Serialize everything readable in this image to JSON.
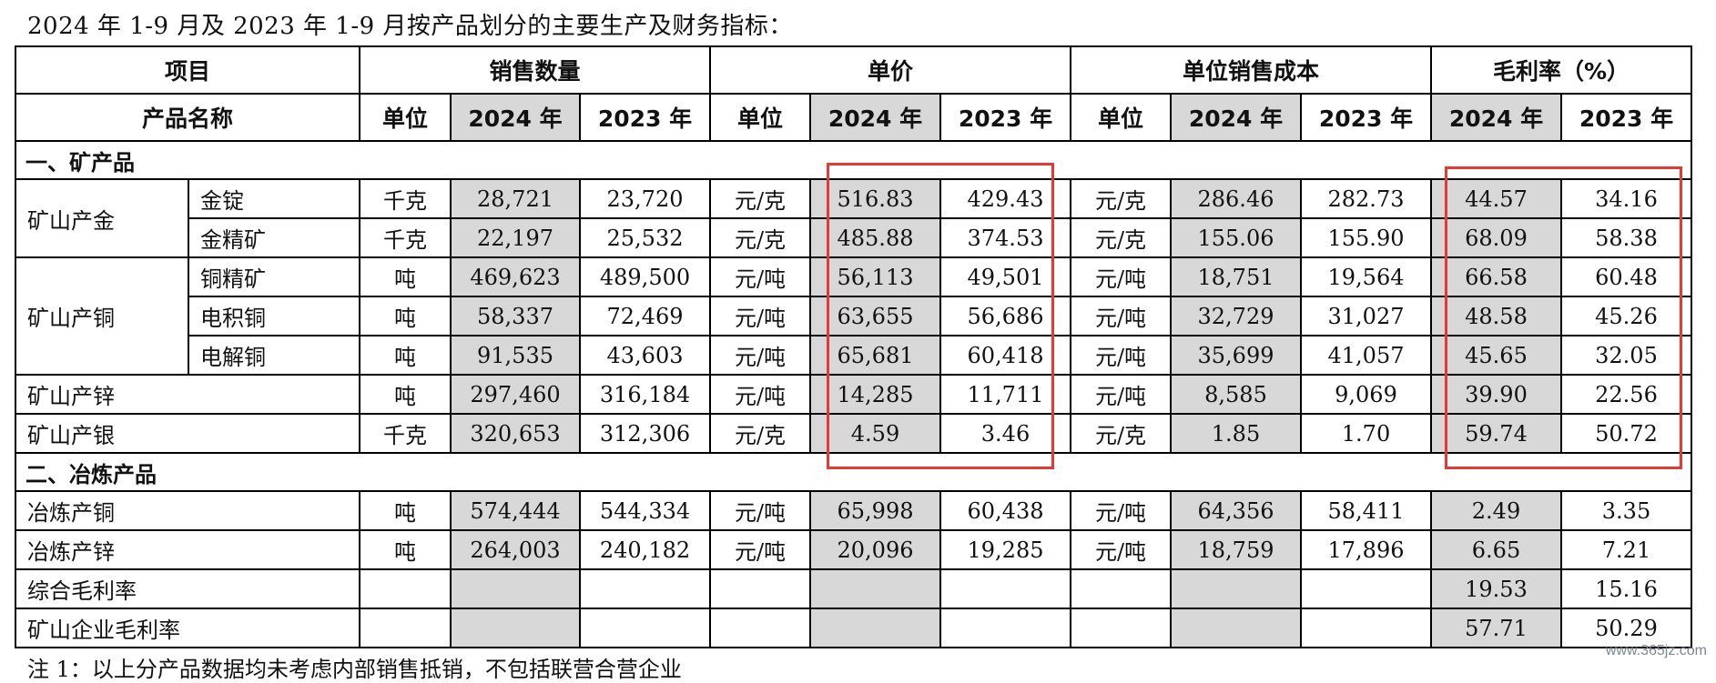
{
  "title": "2024 年 1-9 月及 2023 年 1-9 月按产品划分的主要生产及财务指标：",
  "header1": [
    "项目",
    "销售数量",
    "单价",
    "单位销售成本",
    "毛利率（%）"
  ],
  "header2": {
    "product_name": "产品名称",
    "unit": "单位",
    "y2024": "2024 年",
    "y2023": "2023 年"
  },
  "sections": {
    "mine": "一、矿产品",
    "smelt": "二、冶炼产品"
  },
  "groups": {
    "gold": "矿山产金",
    "copper": "矿山产铜"
  },
  "rows": [
    {
      "name": "金锭",
      "unit": "千克",
      "qty24": "28,721",
      "qty23": "23,720",
      "pu": "元/克",
      "p24": "516.83",
      "p23": "429.43",
      "cu": "元/克",
      "c24": "286.46",
      "c23": "282.73",
      "m24": "44.57",
      "m23": "34.16"
    },
    {
      "name": "金精矿",
      "unit": "千克",
      "qty24": "22,197",
      "qty23": "25,532",
      "pu": "元/克",
      "p24": "485.88",
      "p23": "374.53",
      "cu": "元/克",
      "c24": "155.06",
      "c23": "155.90",
      "m24": "68.09",
      "m23": "58.38"
    },
    {
      "name": "铜精矿",
      "unit": "吨",
      "qty24": "469,623",
      "qty23": "489,500",
      "pu": "元/吨",
      "p24": "56,113",
      "p23": "49,501",
      "cu": "元/吨",
      "c24": "18,751",
      "c23": "19,564",
      "m24": "66.58",
      "m23": "60.48"
    },
    {
      "name": "电积铜",
      "unit": "吨",
      "qty24": "58,337",
      "qty23": "72,469",
      "pu": "元/吨",
      "p24": "63,655",
      "p23": "56,686",
      "cu": "元/吨",
      "c24": "32,729",
      "c23": "31,027",
      "m24": "48.58",
      "m23": "45.26"
    },
    {
      "name": "电解铜",
      "unit": "吨",
      "qty24": "91,535",
      "qty23": "43,603",
      "pu": "元/吨",
      "p24": "65,681",
      "p23": "60,418",
      "cu": "元/吨",
      "c24": "35,699",
      "c23": "41,057",
      "m24": "45.65",
      "m23": "32.05"
    },
    {
      "name": "矿山产锌",
      "unit": "吨",
      "qty24": "297,460",
      "qty23": "316,184",
      "pu": "元/吨",
      "p24": "14,285",
      "p23": "11,711",
      "cu": "元/吨",
      "c24": "8,585",
      "c23": "9,069",
      "m24": "39.90",
      "m23": "22.56"
    },
    {
      "name": "矿山产银",
      "unit": "千克",
      "qty24": "320,653",
      "qty23": "312,306",
      "pu": "元/克",
      "p24": "4.59",
      "p23": "3.46",
      "cu": "元/克",
      "c24": "1.85",
      "c23": "1.70",
      "m24": "59.74",
      "m23": "50.72"
    },
    {
      "name": "冶炼产铜",
      "unit": "吨",
      "qty24": "574,444",
      "qty23": "544,334",
      "pu": "元/吨",
      "p24": "65,998",
      "p23": "60,438",
      "cu": "元/吨",
      "c24": "64,356",
      "c23": "58,411",
      "m24": "2.49",
      "m23": "3.35"
    },
    {
      "name": "冶炼产锌",
      "unit": "吨",
      "qty24": "264,003",
      "qty23": "240,182",
      "pu": "元/吨",
      "p24": "20,096",
      "p23": "19,285",
      "cu": "元/吨",
      "c24": "18,759",
      "c23": "17,896",
      "m24": "6.65",
      "m23": "7.21"
    },
    {
      "name": "综合毛利率",
      "m24": "19.53",
      "m23": "15.16"
    },
    {
      "name": "矿山企业毛利率",
      "m24": "57.71",
      "m23": "50.29"
    }
  ],
  "footnote": "注 1：以上分产品数据均未考虑内部销售抵销，不包括联营合营企业",
  "watermark": "www.365jz.com",
  "colors": {
    "highlight_box": "#e53935",
    "shaded_cell": "#d8d8d8"
  }
}
